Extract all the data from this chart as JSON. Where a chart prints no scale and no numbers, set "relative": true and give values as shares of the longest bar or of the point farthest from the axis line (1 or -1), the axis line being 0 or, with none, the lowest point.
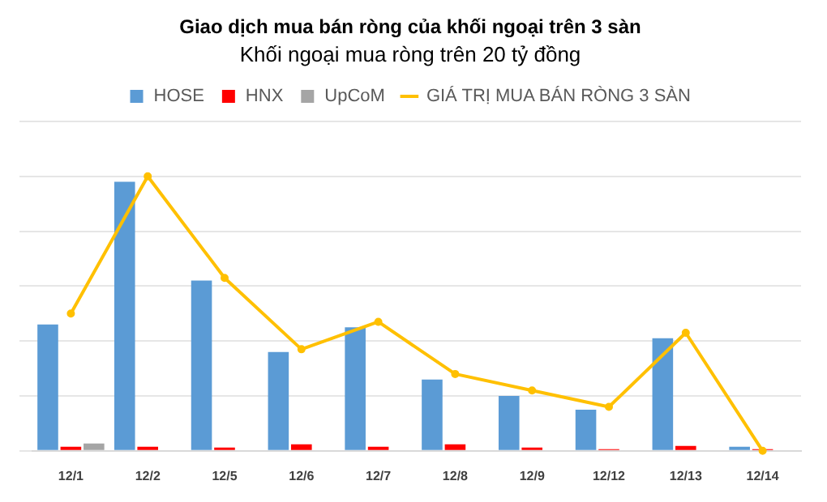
{
  "chart_data": {
    "type": "bar",
    "title": "Giao dịch mua bán ròng của khối ngoại trên 3 sàn",
    "subtitle": "Khối ngoại mua ròng trên 20 tỷ đồng",
    "categories": [
      "12/1",
      "12/2",
      "12/5",
      "12/6",
      "12/7",
      "12/8",
      "12/9",
      "12/12",
      "12/13",
      "12/14"
    ],
    "relative": true,
    "grid": "y",
    "legend": "top",
    "marker": "circle",
    "series": [
      {
        "name": "HOSE",
        "color": "#5b9bd5",
        "values": [
          0.46,
          0.98,
          0.62,
          0.36,
          0.45,
          0.26,
          0.2,
          0.15,
          0.41,
          0.015
        ]
      },
      {
        "name": "HNX",
        "color": "#ff0000",
        "values": [
          0.015,
          0.015,
          0.012,
          0.024,
          0.015,
          0.024,
          0.012,
          0.006,
          0.018,
          0.006
        ]
      },
      {
        "name": "UpCoM",
        "color": "#a5a5a5",
        "values": [
          0.027,
          0,
          0,
          0,
          0,
          0,
          0,
          0,
          0,
          0
        ]
      },
      {
        "name": "GIÁ TRỊ MUA BÁN RÒNG 3 SÀN",
        "type": "line",
        "color": "#ffc000",
        "values": [
          0.5,
          1,
          0.63,
          0.37,
          0.47,
          0.28,
          0.22,
          0.16,
          0.43,
          0
        ]
      }
    ]
  }
}
